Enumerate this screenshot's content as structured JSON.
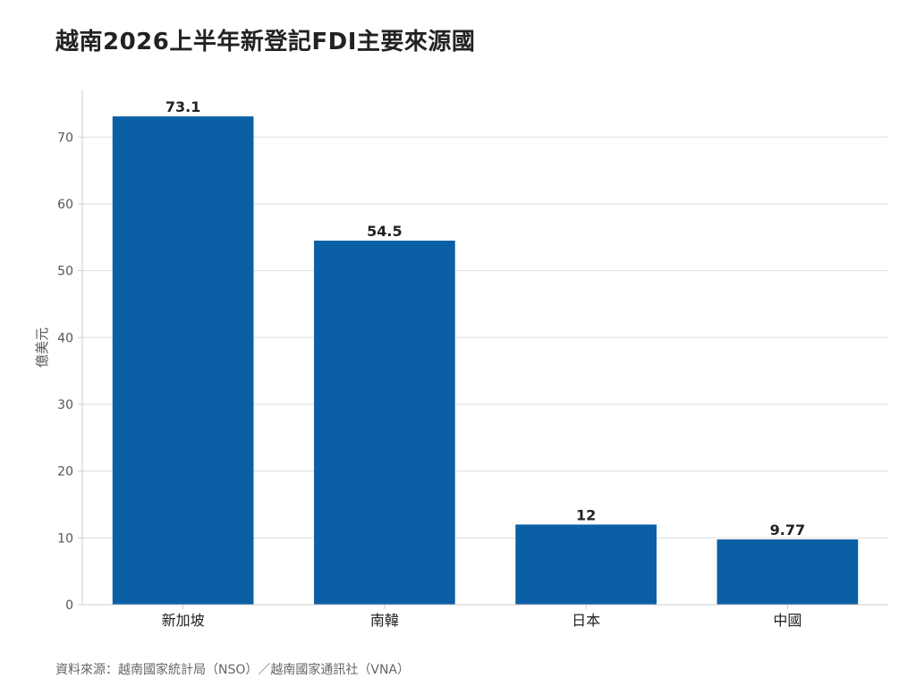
{
  "title": "越南2026上半年新登記FDI主要來源國",
  "source": "資料來源：越南國家統計局（NSO）／越南國家通訊社（VNA）",
  "colors": {
    "bar": "#0b5fa5",
    "grid": "#dddddd",
    "axis": "#cccccc"
  },
  "chart_data": {
    "type": "bar",
    "categories": [
      "新加坡",
      "南韓",
      "日本",
      "中國"
    ],
    "values": [
      73.1,
      54.5,
      12,
      9.77
    ],
    "value_labels": [
      "73.1",
      "54.5",
      "12",
      "9.77"
    ],
    "title": "越南2026上半年新登記FDI主要來源國",
    "xlabel": "",
    "ylabel": "億美元",
    "ylim": [
      0,
      77
    ],
    "yticks": [
      0,
      10,
      20,
      30,
      40,
      50,
      60,
      70
    ],
    "grid": true,
    "legend": "none"
  }
}
